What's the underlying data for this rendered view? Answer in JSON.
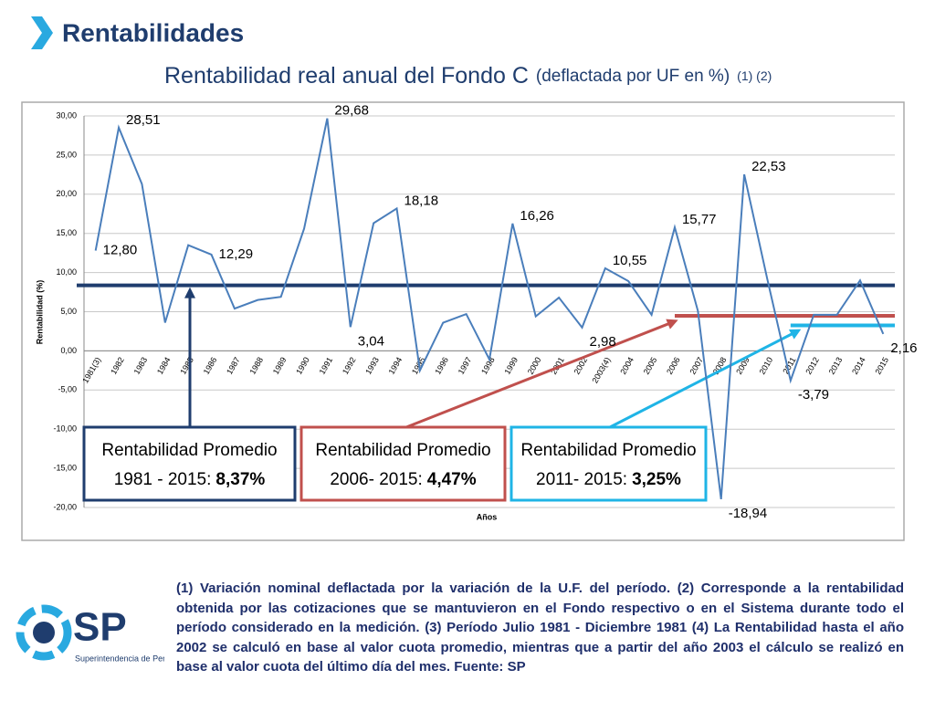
{
  "header": {
    "title": "Rentabilidades"
  },
  "chart_data": {
    "type": "line",
    "title": "Rentabilidad real anual del Fondo C",
    "subtitle": "(deflactada por UF en %)",
    "title_notes": "(1) (2)",
    "y_label": "Rentabilidad (%)",
    "x_label": "Años",
    "categories": [
      "1981(3)",
      "1982",
      "1983",
      "1984",
      "1985",
      "1986",
      "1987",
      "1988",
      "1989",
      "1990",
      "1991",
      "1992",
      "1993",
      "1994",
      "1995",
      "1996",
      "1997",
      "1998",
      "1999",
      "2000",
      "2001",
      "2002",
      "2003(4)",
      "2004",
      "2005",
      "2006",
      "2007",
      "2008",
      "2009",
      "2010",
      "2011",
      "2012",
      "2013",
      "2014",
      "2015"
    ],
    "series": [
      {
        "name": "Fondo C",
        "color": "#4a7ebb",
        "values": [
          12.8,
          28.51,
          21.3,
          3.6,
          13.5,
          12.29,
          5.4,
          6.5,
          6.9,
          15.6,
          29.68,
          3.04,
          16.3,
          18.18,
          -2.5,
          3.6,
          4.7,
          -1.1,
          16.26,
          4.4,
          6.8,
          2.98,
          10.55,
          8.9,
          4.6,
          15.77,
          5.1,
          -18.94,
          22.53,
          9.1,
          -3.79,
          4.6,
          4.6,
          9.0,
          2.16
        ],
        "value_labels": [
          "12,80",
          "28,51",
          null,
          null,
          null,
          "12,29",
          null,
          null,
          null,
          null,
          "29,68",
          "3,04",
          null,
          "18,18",
          null,
          null,
          null,
          null,
          "16,26",
          null,
          null,
          "2,98",
          "10,55",
          null,
          null,
          "15,77",
          null,
          "-18,94",
          "22,53",
          null,
          "-3,79",
          null,
          null,
          null,
          "2,16"
        ]
      }
    ],
    "ylim": [
      -20,
      30
    ],
    "yticks": [
      {
        "value": -20,
        "label": "-20,00"
      },
      {
        "value": -15,
        "label": "-15,00"
      },
      {
        "value": -10,
        "label": "-10,00"
      },
      {
        "value": -5,
        "label": "-5,00"
      },
      {
        "value": 0,
        "label": "0,00"
      },
      {
        "value": 5,
        "label": "5,00"
      },
      {
        "value": 10,
        "label": "10,00"
      },
      {
        "value": 15,
        "label": "15,00"
      },
      {
        "value": 20,
        "label": "20,00"
      },
      {
        "value": 25,
        "label": "25,00"
      },
      {
        "value": 30,
        "label": "30,00"
      }
    ],
    "grid": true,
    "averages": [
      {
        "name": "Rentabilidad Promedio",
        "period": "1981 - 2015:",
        "value": 8.37,
        "label": "8,37%",
        "color": "#1f3d6e",
        "start_category": "1981(3)"
      },
      {
        "name": "Rentabilidad Promedio",
        "period": "2006- 2015:",
        "value": 4.47,
        "label": "4,47%",
        "color": "#c0504d",
        "start_category": "2006"
      },
      {
        "name": "Rentabilidad Promedio",
        "period": "2011- 2015:",
        "value": 3.25,
        "label": "3,25%",
        "color": "#1fb4e6",
        "start_category": "2011"
      }
    ]
  },
  "footnote": "(1) Variación nominal deflactada por la variación de la U.F. del período. (2) Corresponde a la rentabilidad obtenida por las cotizaciones que se mantuvieron en el Fondo respectivo o en el Sistema durante todo el período considerado en la medición. (3) Período Julio 1981 - Diciembre 1981 (4) La Rentabilidad hasta el año 2002 se calculó en base al valor cuota promedio, mientras que a partir del año 2003 el cálculo se realizó en base al valor cuota del último día del mes. Fuente: SP",
  "logo": {
    "text": "SP",
    "caption": "Superintendencia de Pensiones"
  }
}
